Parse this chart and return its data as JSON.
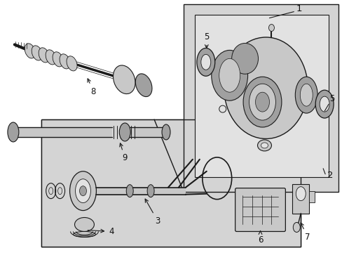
{
  "bg": "#ffffff",
  "shade_gray": "#d4d4d4",
  "inner_gray": "#e2e2e2",
  "part_fill": "#c8c8c8",
  "part_dark": "#a0a0a0",
  "lc": "#1a1a1a",
  "tc": "#111111",
  "fs": 8.5
}
